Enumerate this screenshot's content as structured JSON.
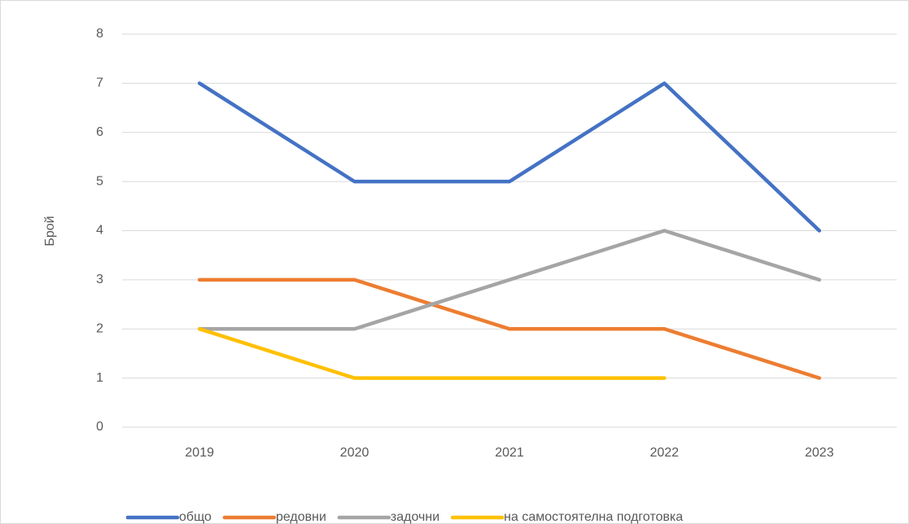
{
  "chart_data": {
    "type": "line",
    "y_label": "Брой",
    "categories": [
      "2019",
      "2020",
      "2021",
      "2022",
      "2023"
    ],
    "series": [
      {
        "name": "общо",
        "color": "#4472c4",
        "values": [
          7,
          5,
          5,
          7,
          4
        ]
      },
      {
        "name": "редовни",
        "color": "#ed7d31",
        "values": [
          3,
          3,
          2,
          2,
          1
        ]
      },
      {
        "name": "задочни",
        "color": "#a5a5a5",
        "values": [
          2,
          2,
          3,
          4,
          3
        ]
      },
      {
        "name": "на самостоятелна подготовка",
        "color": "#ffc000",
        "values": [
          2,
          1,
          1,
          1,
          null
        ]
      }
    ],
    "ylim": [
      0,
      8
    ],
    "yticks": [
      0,
      1,
      2,
      3,
      4,
      5,
      6,
      7,
      8
    ],
    "grid": true,
    "legend": "bottom"
  }
}
